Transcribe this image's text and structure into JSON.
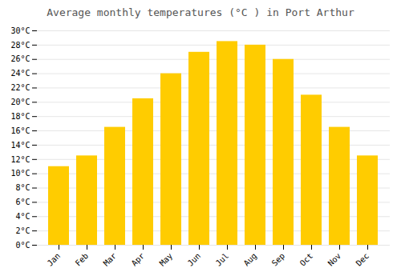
{
  "chart_data": {
    "type": "bar",
    "title": "Average monthly temperatures (°C ) in Port Arthur",
    "categories": [
      "Jan",
      "Feb",
      "Mar",
      "Apr",
      "May",
      "Jun",
      "Jul",
      "Aug",
      "Sep",
      "Oct",
      "Nov",
      "Dec"
    ],
    "values": [
      11.0,
      12.5,
      16.5,
      20.5,
      24.0,
      27.0,
      28.5,
      28.0,
      26.0,
      21.0,
      16.5,
      12.5
    ],
    "color": "#FFCC00",
    "ylim": [
      0,
      30
    ],
    "yticks": [
      {
        "value": 0,
        "label": "0°C"
      },
      {
        "value": 2,
        "label": "2°C"
      },
      {
        "value": 4,
        "label": "4°C"
      },
      {
        "value": 6,
        "label": "6°C"
      },
      {
        "value": 8,
        "label": "8°C"
      },
      {
        "value": 10,
        "label": "10°C"
      },
      {
        "value": 12,
        "label": "12°C"
      },
      {
        "value": 14,
        "label": "14°C"
      },
      {
        "value": 16,
        "label": "16°C"
      },
      {
        "value": 18,
        "label": "18°C"
      },
      {
        "value": 20,
        "label": "20°C"
      },
      {
        "value": 22,
        "label": "22°C"
      },
      {
        "value": 24,
        "label": "24°C"
      },
      {
        "value": 26,
        "label": "26°C"
      },
      {
        "value": 28,
        "label": "28°C"
      },
      {
        "value": 30,
        "label": "30°C"
      }
    ],
    "grid": true
  }
}
